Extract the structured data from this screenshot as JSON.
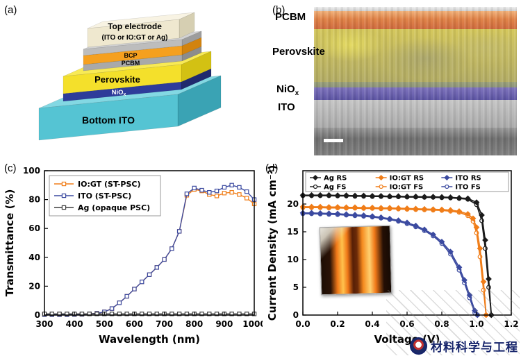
{
  "panels": {
    "a": {
      "label": "(a)",
      "electrode_line1": "Top electrode",
      "electrode_line2": "(ITO or IO:GT or Ag)",
      "layer_labels": {
        "bcp": "BCP",
        "pcbm": "PCBM",
        "perovskite": "Perovskite",
        "niox_main": "NiO",
        "niox_sub": "x",
        "ito": "Bottom ITO"
      },
      "colors": {
        "box": {
          "front": "#efe8cf",
          "top": "#f8f3e3",
          "side": "#d6cfb2"
        },
        "cap": {
          "front": "#bdbdbd",
          "top": "#d2d2d2",
          "side": "#9d9d9d"
        },
        "bcp": {
          "front": "#f5a01f",
          "side": "#d2830e"
        },
        "pcbm": {
          "front": "#a9a9a9",
          "side": "#8c8c8c"
        },
        "pvk": {
          "front": "#f4e02b",
          "top": "#f8ea55",
          "side": "#d3c113"
        },
        "niox": {
          "front": "#2e3c9a",
          "side": "#202a6e"
        },
        "ito": {
          "front": "#55c4d3",
          "top": "#83d8e3",
          "side": "#3aa3b4"
        }
      }
    },
    "b": {
      "label": "(b)",
      "labels": {
        "pcbm": "PCBM",
        "perovskite": "Perovskite",
        "niox_main": "NiO",
        "niox_sub": "x",
        "ito": "ITO"
      }
    },
    "c": {
      "label": "(c)"
    },
    "d": {
      "label": "(d)"
    }
  },
  "watermark": {
    "text": "材料科学与工程"
  },
  "chart_data": [
    {
      "id": "c",
      "type": "line",
      "title": "",
      "xlabel": "Wavelength (nm)",
      "ylabel": "Transmittance (%)",
      "xlim": [
        300,
        1000
      ],
      "ylim": [
        0,
        100
      ],
      "xticks": [
        300,
        400,
        500,
        600,
        700,
        800,
        900,
        1000
      ],
      "xtick_labels": [
        "300",
        "400",
        "500",
        "600",
        "700",
        "800",
        "900",
        "1000"
      ],
      "yticks": [
        0,
        20,
        40,
        60,
        80,
        100
      ],
      "ytick_labels": [
        "0",
        "20",
        "40",
        "60",
        "80",
        "100"
      ],
      "grid": false,
      "legend_position": "top-left",
      "series": [
        {
          "name": "IO:GT (ST-PSC)",
          "color": "#f07d18",
          "marker": "square-open",
          "x": [
            300,
            325,
            350,
            375,
            400,
            425,
            450,
            475,
            500,
            525,
            550,
            575,
            600,
            625,
            650,
            675,
            700,
            725,
            750,
            775,
            800,
            825,
            850,
            875,
            900,
            925,
            950,
            975,
            1000
          ],
          "y": [
            0.3,
            0.3,
            0.3,
            0.3,
            0.4,
            0.5,
            0.8,
            1.2,
            2.2,
            4.5,
            8.5,
            13,
            18,
            23,
            28,
            33,
            38.5,
            46,
            58,
            83,
            87,
            86,
            83.5,
            82.5,
            84.5,
            85,
            83.5,
            81,
            77
          ]
        },
        {
          "name": "ITO (ST-PSC)",
          "color": "#3b4aa0",
          "marker": "square-open",
          "x": [
            300,
            325,
            350,
            375,
            400,
            425,
            450,
            475,
            500,
            525,
            550,
            575,
            600,
            625,
            650,
            675,
            700,
            725,
            750,
            775,
            800,
            825,
            850,
            875,
            900,
            925,
            950,
            975,
            1000
          ],
          "y": [
            0.3,
            0.3,
            0.3,
            0.3,
            0.4,
            0.5,
            0.8,
            1.2,
            2.2,
            4.5,
            8.5,
            13,
            18,
            23,
            28,
            33,
            38.5,
            46,
            58,
            84,
            88,
            86.5,
            85,
            86,
            88.5,
            90,
            88.5,
            85.5,
            80
          ]
        },
        {
          "name": "Ag (opaque PSC)",
          "color": "#3f3f3f",
          "marker": "square-open",
          "x": [
            300,
            325,
            350,
            375,
            400,
            425,
            450,
            475,
            500,
            525,
            550,
            575,
            600,
            625,
            650,
            675,
            700,
            725,
            750,
            775,
            800,
            825,
            850,
            875,
            900,
            925,
            950,
            975,
            1000
          ],
          "y": [
            0.8,
            0.8,
            0.8,
            0.8,
            0.8,
            0.8,
            0.8,
            0.8,
            0.8,
            0.8,
            0.8,
            0.8,
            0.8,
            0.8,
            0.8,
            0.8,
            0.8,
            0.8,
            0.8,
            0.8,
            0.8,
            0.8,
            0.8,
            0.8,
            0.8,
            0.8,
            0.8,
            0.8,
            0.8
          ]
        }
      ]
    },
    {
      "id": "d",
      "type": "line",
      "title": "",
      "xlabel": "Voltage (V)",
      "ylabel": "Current Density (mA cm⁻²)",
      "xlim": [
        0,
        1.2
      ],
      "ylim": [
        0,
        26
      ],
      "xticks": [
        0,
        0.2,
        0.4,
        0.6,
        0.8,
        1.0,
        1.2
      ],
      "xtick_labels": [
        "0.0",
        "0.2",
        "0.4",
        "0.6",
        "0.8",
        "1.0",
        "1.2"
      ],
      "yticks": [
        0,
        5,
        10,
        15,
        20
      ],
      "ytick_labels": [
        "0",
        "5",
        "10",
        "15",
        "20"
      ],
      "grid": false,
      "legend_position": "top",
      "series": [
        {
          "name": "Ag RS",
          "color": "#1a1a1a",
          "marker": "diamond",
          "x": [
            0,
            0.05,
            0.1,
            0.15,
            0.2,
            0.25,
            0.3,
            0.35,
            0.4,
            0.45,
            0.5,
            0.55,
            0.6,
            0.65,
            0.7,
            0.75,
            0.8,
            0.85,
            0.9,
            0.95,
            1.0,
            1.03,
            1.05,
            1.07,
            1.085
          ],
          "y": [
            21.6,
            21.6,
            21.6,
            21.6,
            21.55,
            21.55,
            21.5,
            21.5,
            21.45,
            21.45,
            21.4,
            21.4,
            21.35,
            21.35,
            21.3,
            21.3,
            21.25,
            21.2,
            21.1,
            21.0,
            20.3,
            18.0,
            13.5,
            6.5,
            0
          ]
        },
        {
          "name": "Ag FS",
          "color": "#1a1a1a",
          "marker": "circle-open",
          "x": [
            0,
            0.05,
            0.1,
            0.15,
            0.2,
            0.25,
            0.3,
            0.35,
            0.4,
            0.45,
            0.5,
            0.55,
            0.6,
            0.65,
            0.7,
            0.75,
            0.8,
            0.85,
            0.9,
            0.95,
            1.0,
            1.03,
            1.05,
            1.07,
            1.085
          ],
          "y": [
            21.5,
            21.5,
            21.5,
            21.5,
            21.45,
            21.45,
            21.4,
            21.4,
            21.35,
            21.35,
            21.3,
            21.3,
            21.25,
            21.25,
            21.2,
            21.2,
            21.15,
            21.1,
            21.0,
            20.85,
            19.9,
            17.0,
            12.0,
            5.0,
            0
          ]
        },
        {
          "name": "IO:GT RS",
          "color": "#f07d18",
          "marker": "diamond",
          "x": [
            0,
            0.05,
            0.1,
            0.15,
            0.2,
            0.25,
            0.3,
            0.35,
            0.4,
            0.45,
            0.5,
            0.55,
            0.6,
            0.65,
            0.7,
            0.75,
            0.8,
            0.85,
            0.9,
            0.95,
            0.98,
            1.0,
            1.02,
            1.04,
            1.055
          ],
          "y": [
            19.5,
            19.5,
            19.5,
            19.45,
            19.45,
            19.4,
            19.4,
            19.35,
            19.35,
            19.3,
            19.3,
            19.25,
            19.2,
            19.15,
            19.1,
            19.05,
            19.0,
            18.9,
            18.7,
            18.2,
            17.4,
            15.8,
            12.0,
            6.0,
            0
          ]
        },
        {
          "name": "IO:GT FS",
          "color": "#f07d18",
          "marker": "circle-open",
          "x": [
            0,
            0.05,
            0.1,
            0.15,
            0.2,
            0.25,
            0.3,
            0.35,
            0.4,
            0.45,
            0.5,
            0.55,
            0.6,
            0.65,
            0.7,
            0.75,
            0.8,
            0.85,
            0.9,
            0.95,
            0.98,
            1.0,
            1.02,
            1.04,
            1.055
          ],
          "y": [
            19.35,
            19.35,
            19.35,
            19.3,
            19.3,
            19.25,
            19.25,
            19.2,
            19.2,
            19.15,
            19.15,
            19.1,
            19.05,
            19.0,
            18.95,
            18.9,
            18.85,
            18.7,
            18.5,
            17.9,
            16.9,
            14.8,
            10.5,
            4.5,
            0
          ]
        },
        {
          "name": "ITO RS",
          "color": "#3b4aa0",
          "marker": "diamond",
          "x": [
            0,
            0.05,
            0.1,
            0.15,
            0.2,
            0.25,
            0.3,
            0.35,
            0.4,
            0.45,
            0.5,
            0.55,
            0.6,
            0.65,
            0.7,
            0.75,
            0.8,
            0.85,
            0.9,
            0.93,
            0.96,
            0.99,
            1.005
          ],
          "y": [
            18.4,
            18.4,
            18.35,
            18.3,
            18.25,
            18.15,
            18.05,
            17.95,
            17.8,
            17.6,
            17.35,
            17.05,
            16.65,
            16.1,
            15.4,
            14.5,
            13.2,
            11.4,
            8.6,
            6.3,
            3.6,
            0.8,
            0
          ]
        },
        {
          "name": "ITO FS",
          "color": "#3b4aa0",
          "marker": "circle-open",
          "x": [
            0,
            0.05,
            0.1,
            0.15,
            0.2,
            0.25,
            0.3,
            0.35,
            0.4,
            0.45,
            0.5,
            0.55,
            0.6,
            0.65,
            0.7,
            0.75,
            0.8,
            0.85,
            0.9,
            0.93,
            0.96,
            0.99,
            1.005
          ],
          "y": [
            18.25,
            18.25,
            18.2,
            18.15,
            18.1,
            18.0,
            17.9,
            17.8,
            17.65,
            17.45,
            17.2,
            16.9,
            16.45,
            15.9,
            15.2,
            14.25,
            12.9,
            11.0,
            8.1,
            5.8,
            3.1,
            0.4,
            0
          ]
        }
      ]
    }
  ]
}
